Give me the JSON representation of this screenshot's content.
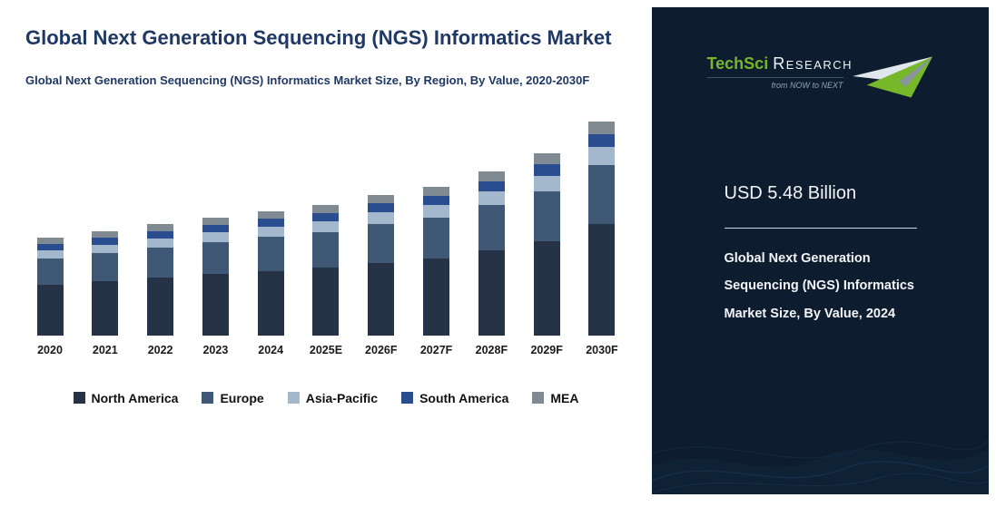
{
  "left": {
    "title": "Global Next Generation Sequencing (NGS) Informatics Market",
    "subtitle": "Global Next Generation Sequencing (NGS) Informatics Market Size, By Region, By Value, 2020-2030F"
  },
  "right": {
    "value": "USD 5.48 Billion",
    "description": "Global Next Generation Sequencing (NGS) Informatics Market Size, By Value, 2024",
    "background_color": "#0d1c2e",
    "logo": {
      "brand_primary": "TechSci",
      "brand_secondary": "Research",
      "tagline": "from NOW to NEXT",
      "brand_green": "#76b82a",
      "arrow_icon": "upward-right-arrow"
    }
  },
  "chart_data": {
    "type": "bar",
    "stacked": true,
    "title": "Global Next Generation Sequencing (NGS) Informatics Market Size, By Region, By Value, 2020-2030F",
    "unit": "USD Billion",
    "categories": [
      "2020",
      "2021",
      "2022",
      "2023",
      "2024",
      "2025E",
      "2026F",
      "2027F",
      "2028F",
      "2029F",
      "2030F"
    ],
    "series": [
      {
        "name": "North America",
        "color": "#263246",
        "values": [
          2.25,
          2.4,
          2.55,
          2.7,
          2.85,
          3.0,
          3.2,
          3.4,
          3.75,
          4.15,
          4.9
        ]
      },
      {
        "name": "Europe",
        "color": "#3f5876",
        "values": [
          1.15,
          1.25,
          1.3,
          1.4,
          1.5,
          1.55,
          1.7,
          1.8,
          2.0,
          2.2,
          2.6
        ]
      },
      {
        "name": "Asia-Pacific",
        "color": "#a3b8cd",
        "values": [
          0.35,
          0.37,
          0.4,
          0.42,
          0.45,
          0.47,
          0.5,
          0.54,
          0.6,
          0.67,
          0.78
        ]
      },
      {
        "name": "South America",
        "color": "#2a4d8f",
        "values": [
          0.28,
          0.3,
          0.31,
          0.33,
          0.35,
          0.36,
          0.39,
          0.41,
          0.45,
          0.5,
          0.58
        ]
      },
      {
        "name": "MEA",
        "color": "#808a93",
        "values": [
          0.27,
          0.28,
          0.3,
          0.32,
          0.33,
          0.35,
          0.37,
          0.4,
          0.44,
          0.49,
          0.57
        ]
      }
    ],
    "totals_note": "2024 total equals 5.48 (USD 5.48 Billion as shown on the right panel)",
    "ylim": [
      0,
      10
    ],
    "grid": false,
    "legend_position": "bottom"
  }
}
